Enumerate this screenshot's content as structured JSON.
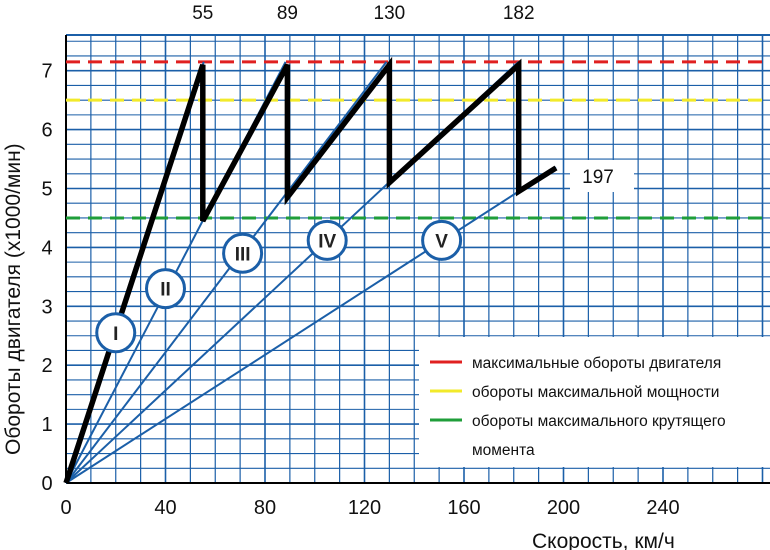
{
  "chart_data": {
    "type": "line",
    "xlabel": "Скорость, км/ч",
    "ylabel": "Обороты двигателя (x1000/мин)",
    "xlim": [
      0,
      280
    ],
    "ylim": [
      0,
      7.5
    ],
    "x_ticks": [
      "0",
      "40",
      "80",
      "120",
      "160",
      "200",
      "240"
    ],
    "y_ticks": [
      "0",
      "1",
      "2",
      "3",
      "4",
      "5",
      "6",
      "7"
    ],
    "grid": true,
    "shift_speeds": [
      "55",
      "89",
      "130",
      "182"
    ],
    "top_speed_label": "197",
    "gears": [
      {
        "name": "I",
        "ratio_rpm_per_kmh": 0.1291,
        "label_at": [
          20,
          2.55
        ]
      },
      {
        "name": "II",
        "ratio_rpm_per_kmh": 0.081,
        "label_at": [
          40,
          3.3
        ]
      },
      {
        "name": "III",
        "ratio_rpm_per_kmh": 0.0555,
        "label_at": [
          71,
          3.9
        ]
      },
      {
        "name": "IV",
        "ratio_rpm_per_kmh": 0.0393,
        "label_at": [
          105,
          4.12
        ]
      },
      {
        "name": "V",
        "ratio_rpm_per_kmh": 0.0272,
        "label_at": [
          151,
          4.12
        ]
      }
    ],
    "acceleration_path": [
      {
        "x": 0,
        "y": 0
      },
      {
        "x": 55,
        "y": 7.1
      },
      {
        "x": 55,
        "y": 4.45
      },
      {
        "x": 89,
        "y": 7.1
      },
      {
        "x": 89,
        "y": 4.85
      },
      {
        "x": 130,
        "y": 7.1
      },
      {
        "x": 130,
        "y": 5.1
      },
      {
        "x": 182,
        "y": 7.1
      },
      {
        "x": 182,
        "y": 4.95
      },
      {
        "x": 197,
        "y": 5.35
      }
    ],
    "reference_lines": [
      {
        "name": "максимальные обороты двигателя",
        "y": 7.15,
        "color": "#e02020"
      },
      {
        "name": "обороты максимальной мощности",
        "y": 6.5,
        "color": "#f2ea2a"
      },
      {
        "name": "обороты максимального крутящего момента",
        "y": 4.5,
        "color": "#1f9e3a"
      }
    ],
    "legend": {
      "position": "bottom-right",
      "entries": [
        {
          "label": "максимальные обороты двигателя",
          "color": "#e02020"
        },
        {
          "label": "обороты максимальной мощности",
          "color": "#f2ea2a"
        },
        {
          "label": "обороты максимального крутящего",
          "color": "#1f9e3a"
        },
        {
          "label": "момента",
          "color": ""
        }
      ]
    },
    "colors": {
      "grid": "#1b5fa8",
      "gear_line": "#1b5fa8",
      "accel_path": "#000000",
      "gear_circle_fill": "#ffffff",
      "gear_circle_stroke": "#1b5fa8",
      "legend_bg": "#ffffff"
    }
  }
}
